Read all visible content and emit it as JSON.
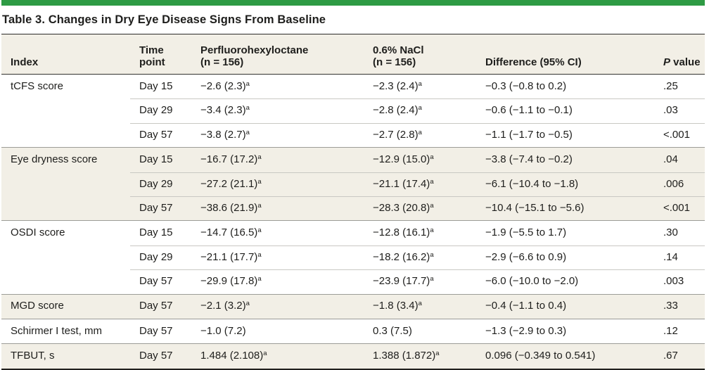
{
  "colors": {
    "accent_green": "#2e9b44",
    "band_beige": "#f2efe6",
    "text": "#1e1e1c",
    "subrow_line": "#c9c8c3",
    "group_line": "#9c9c97",
    "header_line": "#33322e",
    "bottom_line": "#21201e"
  },
  "title": "Table 3. Changes in Dry Eye Disease Signs From Baseline",
  "table": {
    "headers": [
      {
        "lines": [
          "Index"
        ]
      },
      {
        "lines": [
          "Time",
          "point"
        ]
      },
      {
        "lines": [
          "Perfluorohexyloctane",
          "(n = 156)"
        ]
      },
      {
        "lines": [
          "0.6% NaCl",
          "(n = 156)"
        ]
      },
      {
        "lines": [
          "Difference (95% CI)"
        ]
      },
      {
        "italic": "P",
        "rest": " value"
      }
    ],
    "footnote_marker": "a",
    "groups": [
      {
        "index": "tCFS score",
        "shaded": false,
        "rows": [
          {
            "time": "Day 15",
            "drug": {
              "v": "−2.6 (2.3)",
              "sup": "a"
            },
            "nacl": {
              "v": "−2.3 (2.4)",
              "sup": "a"
            },
            "diff": {
              "v": "−0.3 (−0.8 to 0.2)"
            },
            "p": {
              "v": ".25"
            }
          },
          {
            "time": "Day 29",
            "drug": {
              "v": "−3.4 (2.3)",
              "sup": "a"
            },
            "nacl": {
              "v": "−2.8 (2.4)",
              "sup": "a"
            },
            "diff": {
              "v": "−0.6 (−1.1 to −0.1)"
            },
            "p": {
              "v": ".03"
            }
          },
          {
            "time": "Day 57",
            "drug": {
              "v": "−3.8 (2.7)",
              "sup": "a"
            },
            "nacl": {
              "v": "−2.7 (2.8)",
              "sup": "a"
            },
            "diff": {
              "v": "−1.1 (−1.7 to −0.5)"
            },
            "p": {
              "v": "<.001"
            }
          }
        ]
      },
      {
        "index": "Eye dryness score",
        "shaded": true,
        "rows": [
          {
            "time": "Day 15",
            "drug": {
              "v": "−16.7 (17.2)",
              "sup": "a"
            },
            "nacl": {
              "v": "−12.9 (15.0)",
              "sup": "a"
            },
            "diff": {
              "v": "−3.8 (−7.4 to −0.2)"
            },
            "p": {
              "v": ".04"
            }
          },
          {
            "time": "Day 29",
            "drug": {
              "v": "−27.2 (21.1)",
              "sup": "a"
            },
            "nacl": {
              "v": "−21.1 (17.4)",
              "sup": "a"
            },
            "diff": {
              "v": "−6.1 (−10.4 to −1.8)"
            },
            "p": {
              "v": ".006"
            }
          },
          {
            "time": "Day 57",
            "drug": {
              "v": "−38.6 (21.9)",
              "sup": "a"
            },
            "nacl": {
              "v": "−28.3 (20.8)",
              "sup": "a"
            },
            "diff": {
              "v": "−10.4 (−15.1 to −5.6)"
            },
            "p": {
              "v": "<.001"
            }
          }
        ]
      },
      {
        "index": "OSDI score",
        "shaded": false,
        "rows": [
          {
            "time": "Day 15",
            "drug": {
              "v": "−14.7 (16.5)",
              "sup": "a"
            },
            "nacl": {
              "v": "−12.8 (16.1)",
              "sup": "a"
            },
            "diff": {
              "v": "−1.9 (−5.5 to 1.7)"
            },
            "p": {
              "v": ".30"
            }
          },
          {
            "time": "Day 29",
            "drug": {
              "v": "−21.1 (17.7)",
              "sup": "a"
            },
            "nacl": {
              "v": "−18.2 (16.2)",
              "sup": "a"
            },
            "diff": {
              "v": "−2.9 (−6.6 to 0.9)"
            },
            "p": {
              "v": ".14"
            }
          },
          {
            "time": "Day 57",
            "drug": {
              "v": "−29.9 (17.8)",
              "sup": "a"
            },
            "nacl": {
              "v": "−23.9 (17.7)",
              "sup": "a"
            },
            "diff": {
              "v": "−6.0 (−10.0 to −2.0)"
            },
            "p": {
              "v": ".003"
            }
          }
        ]
      },
      {
        "index": "MGD score",
        "shaded": true,
        "rows": [
          {
            "time": "Day 57",
            "drug": {
              "v": "−2.1 (3.2)",
              "sup": "a"
            },
            "nacl": {
              "v": "−1.8 (3.4)",
              "sup": "a"
            },
            "diff": {
              "v": "−0.4 (−1.1 to 0.4)"
            },
            "p": {
              "v": ".33"
            }
          }
        ]
      },
      {
        "index": "Schirmer I test, mm",
        "shaded": false,
        "rows": [
          {
            "time": "Day 57",
            "drug": {
              "v": "−1.0 (7.2)"
            },
            "nacl": {
              "v": "0.3 (7.5)"
            },
            "diff": {
              "v": "−1.3 (−2.9 to 0.3)"
            },
            "p": {
              "v": ".12"
            }
          }
        ]
      },
      {
        "index": "TFBUT, s",
        "shaded": true,
        "rows": [
          {
            "time": "Day 57",
            "drug": {
              "v": "1.484 (2.108)",
              "sup": "a"
            },
            "nacl": {
              "v": "1.388 (1.872)",
              "sup": "a"
            },
            "diff": {
              "v": "0.096 (−0.349 to 0.541)"
            },
            "p": {
              "v": ".67"
            }
          }
        ]
      }
    ]
  }
}
